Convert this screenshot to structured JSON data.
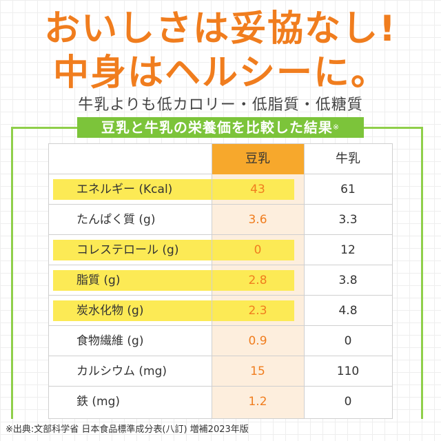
{
  "headline": {
    "line1": "おいしさは妥協なし!",
    "line2": "中身はヘルシーに。"
  },
  "subheadline": "牛乳よりも低カロリー・低脂質・低糖質",
  "banner": {
    "text": "豆乳と牛乳の栄養価を比較した結果",
    "mark": "※"
  },
  "table": {
    "headers": {
      "soy": "豆乳",
      "milk": "牛乳"
    },
    "rows": [
      {
        "name": "エネルギー (Kcal)",
        "soy": "43",
        "milk": "61",
        "highlight": true
      },
      {
        "name": "たんぱく質 (g)",
        "soy": "3.6",
        "milk": "3.3",
        "highlight": false
      },
      {
        "name": "コレステロール (g)",
        "soy": "0",
        "milk": "12",
        "highlight": true
      },
      {
        "name": "脂質 (g)",
        "soy": "2.8",
        "milk": "3.8",
        "highlight": true
      },
      {
        "name": "炭水化物 (g)",
        "soy": "2.3",
        "milk": "4.8",
        "highlight": true
      },
      {
        "name": "食物繊維 (g)",
        "soy": "0.9",
        "milk": "0",
        "highlight": false
      },
      {
        "name": "カルシウム (mg)",
        "soy": "15",
        "milk": "110",
        "highlight": false
      },
      {
        "name": "鉄 (mg)",
        "soy": "1.2",
        "milk": "0",
        "highlight": false
      }
    ]
  },
  "footnote": "※出典:文部科学省 日本食品標準成分表(八訂) 増補2023年版",
  "colors": {
    "accent_orange": "#f07d1e",
    "header_orange": "#f7a82c",
    "highlight_yellow": "#fcea55",
    "frame_green": "#8fcf4a",
    "banner_green": "#7cc43a"
  }
}
